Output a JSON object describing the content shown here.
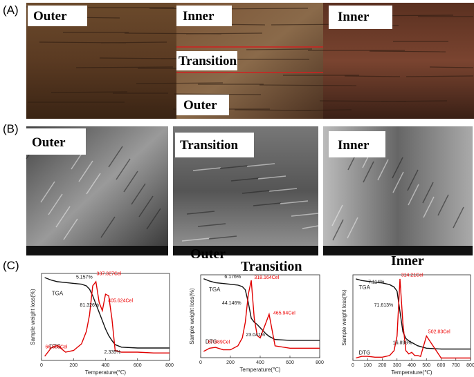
{
  "panel_a": {
    "label": "(A)",
    "labels": [
      "Outer",
      "Inner",
      "Transition",
      "Outer",
      "Inner"
    ]
  },
  "panel_b": {
    "label": "(B)",
    "labels": [
      "Outer",
      "Transition",
      "Inner"
    ]
  },
  "panel_c": {
    "label": "(C)",
    "charts": [
      {
        "type": "line",
        "title": "Outer",
        "xlabel": "Temperature(℃)",
        "ylabel": "Sample weight loss(%)",
        "x": [
          20,
          60,
          100,
          150,
          200,
          250,
          280,
          300,
          320,
          340,
          360,
          380,
          400,
          420,
          440,
          460,
          500,
          600,
          700,
          800
        ],
        "series": [
          {
            "name": "TGA",
            "color": "#111111",
            "values": [
              100,
              97,
              95,
              94,
              93,
              92,
              90,
              86,
              78,
              68,
              58,
              48,
              38,
              30,
              24,
              19,
              16,
              15,
              15,
              15
            ]
          },
          {
            "name": "DTG",
            "color": "#e00000",
            "values": [
              5,
              15,
              18,
              10,
              12,
              20,
              35,
              55,
              90,
              95,
              70,
              60,
              80,
              78,
              50,
              12,
              10,
              10,
              9,
              9
            ]
          }
        ],
        "xlim": [
          0,
          800
        ],
        "xticks": [
          0,
          200,
          400,
          600,
          800
        ],
        "ylim": [
          0,
          105
        ],
        "annotations": [
          "5.157%",
          "337.327Cel",
          "405.624Cel",
          "81.326%",
          "66.509Cel",
          "2.335%"
        ]
      },
      {
        "type": "line",
        "title": "Transition",
        "xlabel": "Temperature(℃)",
        "ylabel": "Sample weight loss(%)",
        "x": [
          20,
          60,
          100,
          150,
          200,
          250,
          280,
          300,
          320,
          340,
          360,
          380,
          400,
          420,
          440,
          460,
          500,
          600,
          700,
          800
        ],
        "series": [
          {
            "name": "TGA",
            "color": "#111111",
            "values": [
              100,
              97,
              95,
              94,
              93,
              92,
              90,
              86,
              70,
              50,
              45,
              42,
              38,
              34,
              30,
              27,
              23,
              22,
              22,
              22
            ]
          },
          {
            "name": "DTG",
            "color": "#e00000",
            "values": [
              8,
              12,
              13,
              10,
              10,
              15,
              25,
              45,
              80,
              98,
              50,
              28,
              25,
              35,
              45,
              55,
              15,
              12,
              12,
              12
            ]
          }
        ],
        "xlim": [
          0,
          800
        ],
        "xticks": [
          0,
          200,
          400,
          600,
          800
        ],
        "ylim": [
          0,
          105
        ],
        "annotations": [
          "6.176%",
          "318.164Cel",
          "44.146%",
          "465.94Cel",
          "67.989Cel",
          "23.041%"
        ]
      },
      {
        "type": "line",
        "title": "Inner",
        "xlabel": "Temperature(℃)",
        "ylabel": "Sample weight loss(%)",
        "x": [
          20,
          60,
          100,
          150,
          200,
          250,
          280,
          300,
          320,
          340,
          360,
          380,
          400,
          420,
          440,
          460,
          500,
          600,
          700,
          800
        ],
        "series": [
          {
            "name": "TGA",
            "color": "#111111",
            "values": [
              100,
              98,
              97,
              96,
              95,
              93,
              90,
              85,
              60,
              35,
              27,
              24,
              22,
              20,
              18,
              17,
              15,
              14,
              14,
              14
            ]
          },
          {
            "name": "DTG",
            "color": "#e00000",
            "values": [
              3,
              5,
              5,
              4,
              4,
              6,
              12,
              30,
              100,
              45,
              12,
              8,
              10,
              6,
              6,
              5,
              30,
              3,
              3,
              3
            ]
          }
        ],
        "xlim": [
          0,
          800
        ],
        "xticks": [
          0,
          100,
          200,
          300,
          400,
          500,
          600,
          700,
          800
        ],
        "ylim": [
          0,
          105
        ],
        "annotations": [
          "7.114%",
          "314.21Cel",
          "71.613%",
          "502.83Cel",
          "16.896%"
        ]
      }
    ]
  }
}
